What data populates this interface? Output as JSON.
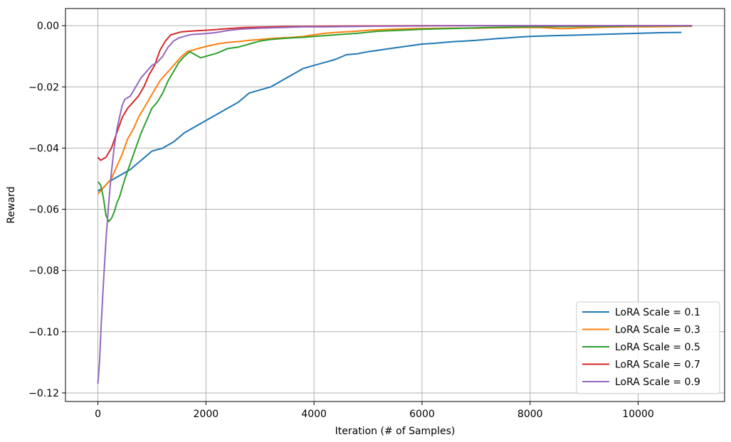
{
  "chart_data": {
    "type": "line",
    "title": "",
    "xlabel": "Iteration (# of Samples)",
    "ylabel": "Reward",
    "xlim": [
      -600,
      11600
    ],
    "ylim": [
      -0.1228,
      0.0056
    ],
    "xticks": [
      0,
      2000,
      4000,
      6000,
      8000,
      10000
    ],
    "xtick_labels": [
      "0",
      "2000",
      "4000",
      "6000",
      "8000",
      "10000"
    ],
    "yticks": [
      -0.12,
      -0.1,
      -0.08,
      -0.06,
      -0.04,
      -0.02,
      0.0
    ],
    "ytick_labels": [
      "−0.12",
      "−0.10",
      "−0.08",
      "−0.06",
      "−0.04",
      "−0.02",
      "0.00"
    ],
    "grid": true,
    "legend_position": "lower-right",
    "series": [
      {
        "name": "LoRA Scale = 0.1",
        "color": "#1f77b4",
        "points": [
          [
            0,
            -0.054
          ],
          [
            100,
            -0.053
          ],
          [
            200,
            -0.051
          ],
          [
            400,
            -0.049
          ],
          [
            600,
            -0.047
          ],
          [
            800,
            -0.044
          ],
          [
            1000,
            -0.041
          ],
          [
            1200,
            -0.04
          ],
          [
            1400,
            -0.038
          ],
          [
            1600,
            -0.035
          ],
          [
            1800,
            -0.033
          ],
          [
            2000,
            -0.031
          ],
          [
            2200,
            -0.029
          ],
          [
            2400,
            -0.027
          ],
          [
            2600,
            -0.025
          ],
          [
            2800,
            -0.022
          ],
          [
            3000,
            -0.021
          ],
          [
            3200,
            -0.02
          ],
          [
            3400,
            -0.018
          ],
          [
            3600,
            -0.016
          ],
          [
            3800,
            -0.014
          ],
          [
            4000,
            -0.013
          ],
          [
            4200,
            -0.012
          ],
          [
            4400,
            -0.011
          ],
          [
            4600,
            -0.0095
          ],
          [
            4800,
            -0.0092
          ],
          [
            5000,
            -0.0085
          ],
          [
            5200,
            -0.008
          ],
          [
            5400,
            -0.0075
          ],
          [
            5600,
            -0.007
          ],
          [
            5800,
            -0.0065
          ],
          [
            6000,
            -0.006
          ],
          [
            6200,
            -0.0058
          ],
          [
            6400,
            -0.0055
          ],
          [
            6600,
            -0.0052
          ],
          [
            6800,
            -0.005
          ],
          [
            7000,
            -0.0048
          ],
          [
            7200,
            -0.0045
          ],
          [
            7400,
            -0.0042
          ],
          [
            7600,
            -0.004
          ],
          [
            7800,
            -0.0037
          ],
          [
            8000,
            -0.0035
          ],
          [
            8400,
            -0.0033
          ],
          [
            8800,
            -0.0031
          ],
          [
            9200,
            -0.0029
          ],
          [
            9600,
            -0.0027
          ],
          [
            10000,
            -0.0025
          ],
          [
            10400,
            -0.0023
          ],
          [
            10800,
            -0.0022
          ]
        ]
      },
      {
        "name": "LoRA Scale = 0.3",
        "color": "#ff7f0e",
        "points": [
          [
            0,
            -0.055
          ],
          [
            50,
            -0.054
          ],
          [
            150,
            -0.052
          ],
          [
            250,
            -0.05
          ],
          [
            350,
            -0.046
          ],
          [
            450,
            -0.042
          ],
          [
            550,
            -0.037
          ],
          [
            650,
            -0.034
          ],
          [
            750,
            -0.03
          ],
          [
            850,
            -0.027
          ],
          [
            950,
            -0.024
          ],
          [
            1050,
            -0.021
          ],
          [
            1150,
            -0.018
          ],
          [
            1250,
            -0.016
          ],
          [
            1350,
            -0.014
          ],
          [
            1450,
            -0.012
          ],
          [
            1550,
            -0.01
          ],
          [
            1650,
            -0.0085
          ],
          [
            1750,
            -0.008
          ],
          [
            1850,
            -0.0075
          ],
          [
            2000,
            -0.0068
          ],
          [
            2200,
            -0.006
          ],
          [
            2400,
            -0.0055
          ],
          [
            2600,
            -0.0052
          ],
          [
            2800,
            -0.0048
          ],
          [
            3000,
            -0.0045
          ],
          [
            3200,
            -0.0042
          ],
          [
            3400,
            -0.004
          ],
          [
            3600,
            -0.0038
          ],
          [
            3800,
            -0.0035
          ],
          [
            4000,
            -0.003
          ],
          [
            4200,
            -0.0025
          ],
          [
            4400,
            -0.0022
          ],
          [
            4600,
            -0.002
          ],
          [
            4800,
            -0.0018
          ],
          [
            5000,
            -0.0015
          ],
          [
            5400,
            -0.0012
          ],
          [
            5800,
            -0.001
          ],
          [
            6200,
            -0.0009
          ],
          [
            6600,
            -0.0008
          ],
          [
            7000,
            -0.0008
          ],
          [
            7400,
            -0.0007
          ],
          [
            7800,
            -0.0006
          ],
          [
            8200,
            -0.0006
          ],
          [
            8600,
            -0.001
          ],
          [
            9000,
            -0.0007
          ],
          [
            9400,
            -0.0005
          ],
          [
            9800,
            -0.0004
          ],
          [
            10200,
            -0.0004
          ],
          [
            10600,
            -0.0003
          ],
          [
            11000,
            -0.0002
          ]
        ]
      },
      {
        "name": "LoRA Scale = 0.5",
        "color": "#2ca02c",
        "points": [
          [
            0,
            -0.051
          ],
          [
            50,
            -0.052
          ],
          [
            100,
            -0.056
          ],
          [
            150,
            -0.062
          ],
          [
            200,
            -0.064
          ],
          [
            250,
            -0.063
          ],
          [
            300,
            -0.061
          ],
          [
            350,
            -0.058
          ],
          [
            400,
            -0.056
          ],
          [
            450,
            -0.053
          ],
          [
            500,
            -0.05
          ],
          [
            600,
            -0.045
          ],
          [
            700,
            -0.04
          ],
          [
            800,
            -0.035
          ],
          [
            900,
            -0.031
          ],
          [
            1000,
            -0.027
          ],
          [
            1100,
            -0.025
          ],
          [
            1200,
            -0.022
          ],
          [
            1300,
            -0.018
          ],
          [
            1400,
            -0.015
          ],
          [
            1500,
            -0.012
          ],
          [
            1600,
            -0.01
          ],
          [
            1700,
            -0.0085
          ],
          [
            1800,
            -0.0095
          ],
          [
            1900,
            -0.0105
          ],
          [
            2000,
            -0.01
          ],
          [
            2200,
            -0.009
          ],
          [
            2400,
            -0.0075
          ],
          [
            2600,
            -0.007
          ],
          [
            2800,
            -0.006
          ],
          [
            3000,
            -0.005
          ],
          [
            3200,
            -0.0045
          ],
          [
            3400,
            -0.0042
          ],
          [
            3600,
            -0.004
          ],
          [
            3800,
            -0.0038
          ],
          [
            4000,
            -0.0035
          ],
          [
            4400,
            -0.003
          ],
          [
            4800,
            -0.0025
          ],
          [
            5200,
            -0.0018
          ],
          [
            5600,
            -0.0015
          ],
          [
            6000,
            -0.0012
          ],
          [
            6400,
            -0.001
          ],
          [
            6800,
            -0.0008
          ],
          [
            7200,
            -0.0006
          ],
          [
            7600,
            -0.0005
          ],
          [
            8000,
            -0.0004
          ],
          [
            8800,
            -0.0003
          ],
          [
            9600,
            -0.0002
          ],
          [
            10400,
            -0.0001
          ],
          [
            11000,
            -0.0001
          ]
        ]
      },
      {
        "name": "LoRA Scale = 0.7",
        "color": "#d62728",
        "points": [
          [
            0,
            -0.043
          ],
          [
            50,
            -0.044
          ],
          [
            150,
            -0.043
          ],
          [
            250,
            -0.04
          ],
          [
            350,
            -0.035
          ],
          [
            450,
            -0.03
          ],
          [
            550,
            -0.027
          ],
          [
            650,
            -0.025
          ],
          [
            750,
            -0.023
          ],
          [
            850,
            -0.02
          ],
          [
            950,
            -0.016
          ],
          [
            1050,
            -0.013
          ],
          [
            1150,
            -0.008
          ],
          [
            1250,
            -0.005
          ],
          [
            1350,
            -0.003
          ],
          [
            1450,
            -0.0025
          ],
          [
            1550,
            -0.002
          ],
          [
            1700,
            -0.0018
          ],
          [
            1900,
            -0.0016
          ],
          [
            2100,
            -0.0014
          ],
          [
            2400,
            -0.001
          ],
          [
            2700,
            -0.0006
          ],
          [
            3000,
            -0.0005
          ],
          [
            3500,
            -0.0003
          ],
          [
            4000,
            -0.0002
          ],
          [
            5000,
            -0.0001
          ],
          [
            6000,
            0.0
          ],
          [
            8000,
            0.0
          ],
          [
            11000,
            0.0
          ]
        ]
      },
      {
        "name": "LoRA Scale = 0.9",
        "color": "#9467bd",
        "points": [
          [
            0,
            -0.117
          ],
          [
            30,
            -0.11
          ],
          [
            60,
            -0.098
          ],
          [
            100,
            -0.085
          ],
          [
            150,
            -0.07
          ],
          [
            200,
            -0.058
          ],
          [
            250,
            -0.048
          ],
          [
            300,
            -0.04
          ],
          [
            350,
            -0.034
          ],
          [
            400,
            -0.03
          ],
          [
            450,
            -0.026
          ],
          [
            500,
            -0.024
          ],
          [
            600,
            -0.023
          ],
          [
            700,
            -0.02
          ],
          [
            800,
            -0.017
          ],
          [
            900,
            -0.015
          ],
          [
            1000,
            -0.013
          ],
          [
            1100,
            -0.012
          ],
          [
            1200,
            -0.01
          ],
          [
            1300,
            -0.007
          ],
          [
            1400,
            -0.005
          ],
          [
            1500,
            -0.004
          ],
          [
            1600,
            -0.0035
          ],
          [
            1700,
            -0.003
          ],
          [
            1800,
            -0.0028
          ],
          [
            2000,
            -0.0026
          ],
          [
            2200,
            -0.0022
          ],
          [
            2400,
            -0.0016
          ],
          [
            2600,
            -0.0012
          ],
          [
            2800,
            -0.001
          ],
          [
            3000,
            -0.0008
          ],
          [
            3400,
            -0.0006
          ],
          [
            3800,
            -0.0004
          ],
          [
            4200,
            -0.0004
          ],
          [
            4600,
            -0.0003
          ],
          [
            5000,
            -0.0002
          ],
          [
            6000,
            -0.0001
          ],
          [
            7000,
            0.0
          ],
          [
            9000,
            0.0
          ],
          [
            11000,
            0.0
          ]
        ]
      }
    ]
  }
}
